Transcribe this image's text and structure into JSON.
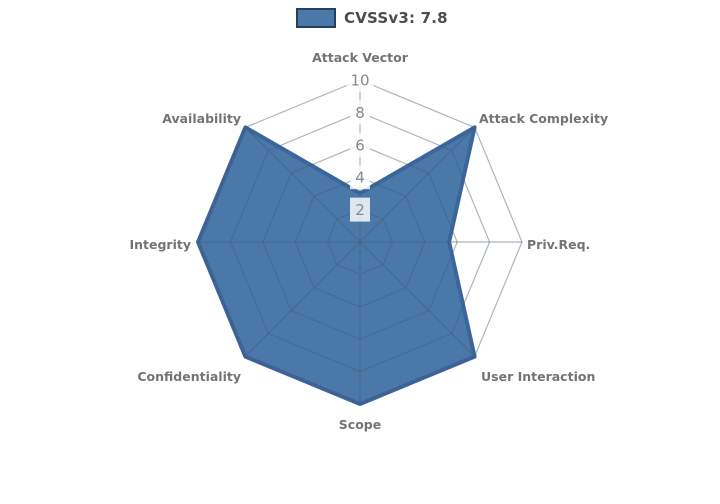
{
  "page": {
    "background": "#ffffff"
  },
  "legend": {
    "label": "CVSSv3: 7.8",
    "swatch_fill": "#4a78a8",
    "swatch_border": "#24405e"
  },
  "chart_data": {
    "type": "radar",
    "title": "CVSSv3: 7.8",
    "categories": [
      "Attack Vector",
      "Attack Complexity",
      "Priv.Req.",
      "User Interaction",
      "Scope",
      "Confidentiality",
      "Integrity",
      "Availability"
    ],
    "series": [
      {
        "name": "CVSSv3: 7.8",
        "values": [
          3,
          10,
          5.5,
          10,
          10,
          10,
          10,
          10
        ],
        "fill_color": "#4a78a8",
        "stroke_color": "#3c659c"
      }
    ],
    "radial_ticks": [
      2,
      4,
      6,
      8,
      10
    ],
    "rlim": [
      0,
      10
    ],
    "grid": true,
    "legend_position": "top-center",
    "start_angle_deg": 90,
    "direction": "clockwise"
  },
  "colors": {
    "grid_line": "rgba(70,90,115,0.45)",
    "tick_text": "#8a8a8a",
    "tick_box": "rgba(255,255,255,0.82)",
    "axis_label_text": "#747474",
    "legend_text": "#4c4c4c"
  }
}
